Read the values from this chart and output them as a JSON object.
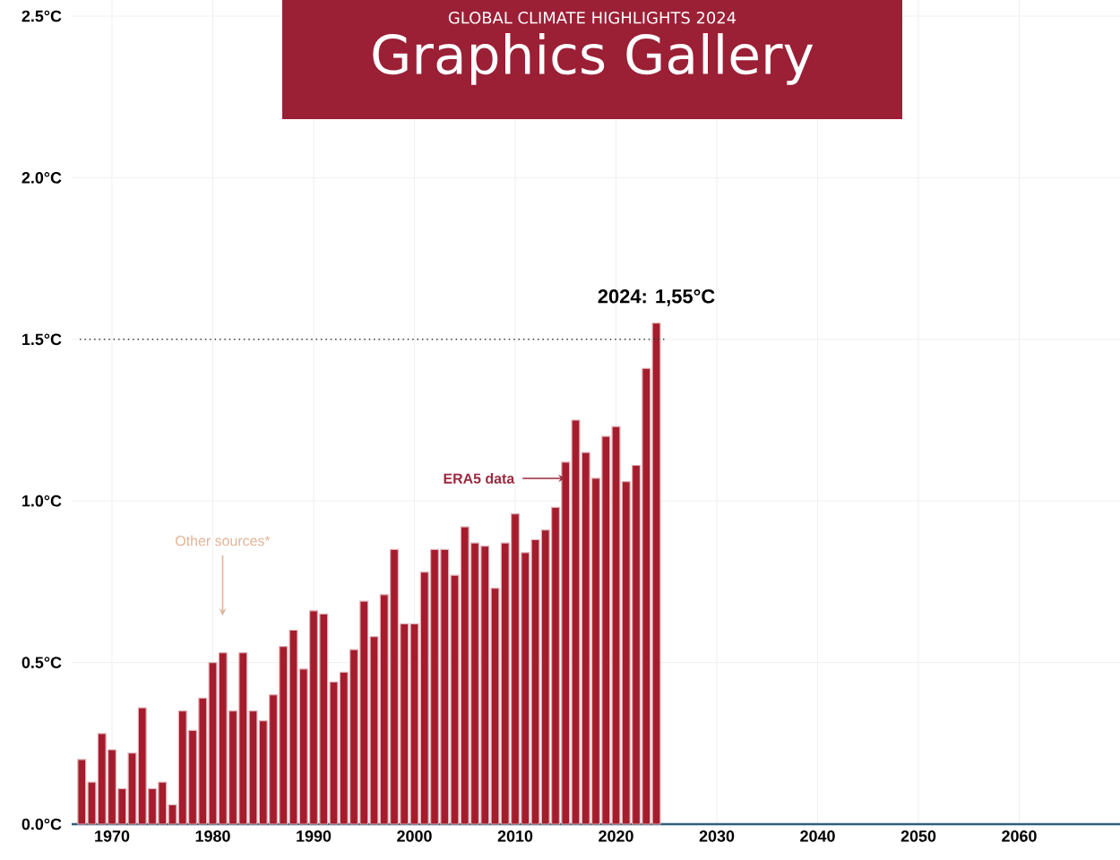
{
  "chart_data": {
    "type": "bar",
    "title": "Graphics Gallery",
    "subtitle": "GLOBAL CLIMATE HIGHLIGHTS 2024",
    "x": [
      1967,
      1968,
      1969,
      1970,
      1971,
      1972,
      1973,
      1974,
      1975,
      1976,
      1977,
      1978,
      1979,
      1980,
      1981,
      1982,
      1983,
      1984,
      1985,
      1986,
      1987,
      1988,
      1989,
      1990,
      1991,
      1992,
      1993,
      1994,
      1995,
      1996,
      1997,
      1998,
      1999,
      2000,
      2001,
      2002,
      2003,
      2004,
      2005,
      2006,
      2007,
      2008,
      2009,
      2010,
      2011,
      2012,
      2013,
      2014,
      2015,
      2016,
      2017,
      2018,
      2019,
      2020,
      2021,
      2022,
      2023,
      2024
    ],
    "values": [
      0.2,
      0.13,
      0.28,
      0.23,
      0.11,
      0.22,
      0.36,
      0.11,
      0.13,
      0.06,
      0.35,
      0.29,
      0.39,
      0.5,
      0.53,
      0.35,
      0.53,
      0.35,
      0.32,
      0.4,
      0.55,
      0.6,
      0.48,
      0.66,
      0.65,
      0.44,
      0.47,
      0.54,
      0.69,
      0.58,
      0.71,
      0.85,
      0.62,
      0.62,
      0.78,
      0.85,
      0.85,
      0.77,
      0.92,
      0.87,
      0.86,
      0.73,
      0.87,
      0.96,
      0.84,
      0.88,
      0.91,
      0.98,
      1.12,
      1.25,
      1.15,
      1.07,
      1.2,
      1.23,
      1.06,
      1.11,
      1.41,
      1.55
    ],
    "color": "#a51c2d",
    "xlim": [
      1966,
      2070
    ],
    "xticks": [
      1970,
      1980,
      1990,
      2000,
      2010,
      2020,
      2030,
      2040,
      2050,
      2060
    ],
    "ylim": [
      0,
      2.55
    ],
    "yticks": [
      {
        "value": 0,
        "label": "0.0°C"
      },
      {
        "value": 0.5,
        "label": "0.5°C"
      },
      {
        "value": 1.0,
        "label": "1.0°C"
      },
      {
        "value": 1.5,
        "label": "1.5°C"
      },
      {
        "value": 2.0,
        "label": "2.0°C"
      },
      {
        "value": 2.5,
        "label": "2.5°C"
      }
    ],
    "grid": true,
    "ref_lines": [
      {
        "axis": "y",
        "value": 1.5,
        "color": "#333333",
        "line_style": "dotted"
      }
    ],
    "annotations": [
      {
        "text": "2024: 1,55°C",
        "x": 2024,
        "y": 1.55
      },
      {
        "text": "ERA5 data",
        "x": 2015,
        "y": 1.07
      },
      "Other sources*"
    ]
  }
}
